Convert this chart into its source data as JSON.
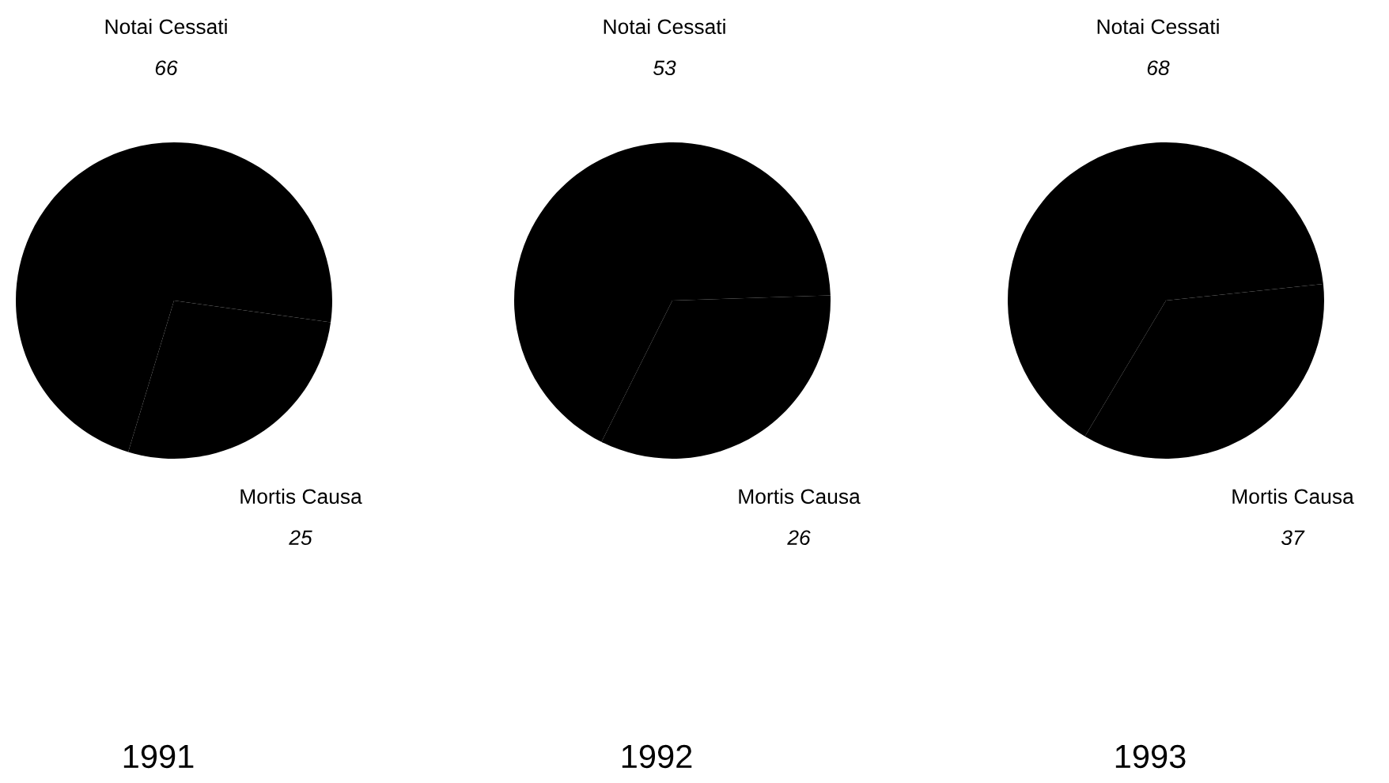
{
  "chart_data": [
    {
      "type": "pie",
      "title": "1991",
      "categories": [
        "Notai Cessati",
        "Mortis Causa"
      ],
      "values": [
        66,
        25
      ],
      "colors": [
        "#000000",
        "#000000"
      ],
      "data_labels": true
    },
    {
      "type": "pie",
      "title": "1992",
      "categories": [
        "Notai Cessati",
        "Mortis Causa"
      ],
      "values": [
        53,
        26
      ],
      "colors": [
        "#000000",
        "#000000"
      ],
      "data_labels": true
    },
    {
      "type": "pie",
      "title": "1993",
      "categories": [
        "Notai Cessati",
        "Mortis Causa"
      ],
      "values": [
        68,
        37
      ],
      "colors": [
        "#000000",
        "#000000"
      ],
      "data_labels": true
    }
  ]
}
